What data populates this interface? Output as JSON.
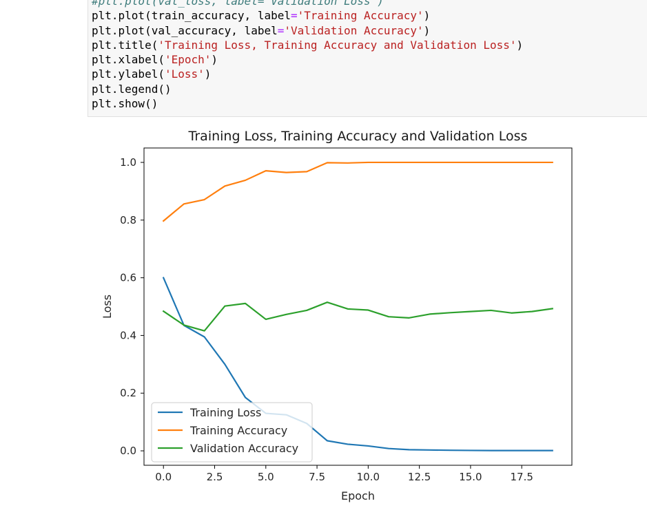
{
  "code_cell": {
    "lines": [
      [
        {
          "t": "#plt.plot(val_loss, label='Validation Loss')",
          "c": "c"
        }
      ],
      [
        {
          "t": "plt.plot(train_accuracy, label",
          "c": ""
        },
        {
          "t": "=",
          "c": "op"
        },
        {
          "t": "'Training Accuracy'",
          "c": "s"
        },
        {
          "t": ")",
          "c": ""
        }
      ],
      [
        {
          "t": "plt.plot(val_accuracy, label",
          "c": ""
        },
        {
          "t": "=",
          "c": "op"
        },
        {
          "t": "'Validation Accuracy'",
          "c": "s"
        },
        {
          "t": ")",
          "c": ""
        }
      ],
      [
        {
          "t": "plt.title(",
          "c": ""
        },
        {
          "t": "'Training Loss, Training Accuracy and Validation Loss'",
          "c": "s"
        },
        {
          "t": ")",
          "c": ""
        }
      ],
      [
        {
          "t": "plt.xlabel(",
          "c": ""
        },
        {
          "t": "'Epoch'",
          "c": "s"
        },
        {
          "t": ")",
          "c": ""
        }
      ],
      [
        {
          "t": "plt.ylabel(",
          "c": ""
        },
        {
          "t": "'Loss'",
          "c": "s"
        },
        {
          "t": ")",
          "c": ""
        }
      ],
      [
        {
          "t": "plt.legend()",
          "c": ""
        }
      ],
      [
        {
          "t": "plt.show()",
          "c": ""
        }
      ]
    ]
  },
  "chart_data": {
    "type": "line",
    "title": "Training Loss, Training Accuracy and Validation Loss",
    "xlabel": "Epoch",
    "ylabel": "Loss",
    "xlim": [
      -0.95,
      19.95
    ],
    "ylim": [
      -0.05,
      1.05
    ],
    "xticks": [
      0.0,
      2.5,
      5.0,
      7.5,
      10.0,
      12.5,
      15.0,
      17.5
    ],
    "xtick_labels": [
      "0.0",
      "2.5",
      "5.0",
      "7.5",
      "10.0",
      "12.5",
      "15.0",
      "17.5"
    ],
    "yticks": [
      0.0,
      0.2,
      0.4,
      0.6,
      0.8,
      1.0
    ],
    "ytick_labels": [
      "0.0",
      "0.2",
      "0.4",
      "0.6",
      "0.8",
      "1.0"
    ],
    "grid": false,
    "legend_position": "lower-left",
    "x": [
      0,
      1,
      2,
      3,
      4,
      5,
      6,
      7,
      8,
      9,
      10,
      11,
      12,
      13,
      14,
      15,
      16,
      17,
      18,
      19
    ],
    "series": [
      {
        "name": "Training Loss",
        "color": "#1f77b4",
        "values": [
          0.6,
          0.435,
          0.395,
          0.3,
          0.185,
          0.13,
          0.125,
          0.095,
          0.035,
          0.023,
          0.017,
          0.008,
          0.004,
          0.003,
          0.002,
          0.0015,
          0.001,
          0.001,
          0.001,
          0.001
        ]
      },
      {
        "name": "Training Accuracy",
        "color": "#ff7f0e",
        "values": [
          0.797,
          0.856,
          0.871,
          0.918,
          0.938,
          0.971,
          0.965,
          0.968,
          0.999,
          0.998,
          1.0,
          1.0,
          1.0,
          1.0,
          1.0,
          1.0,
          1.0,
          1.0,
          1.0,
          1.0
        ]
      },
      {
        "name": "Validation Accuracy",
        "color": "#2ca02c",
        "values": [
          0.484,
          0.436,
          0.416,
          0.502,
          0.511,
          0.456,
          0.473,
          0.487,
          0.515,
          0.492,
          0.488,
          0.465,
          0.461,
          0.474,
          0.479,
          0.483,
          0.487,
          0.478,
          0.483,
          0.493
        ]
      }
    ]
  }
}
